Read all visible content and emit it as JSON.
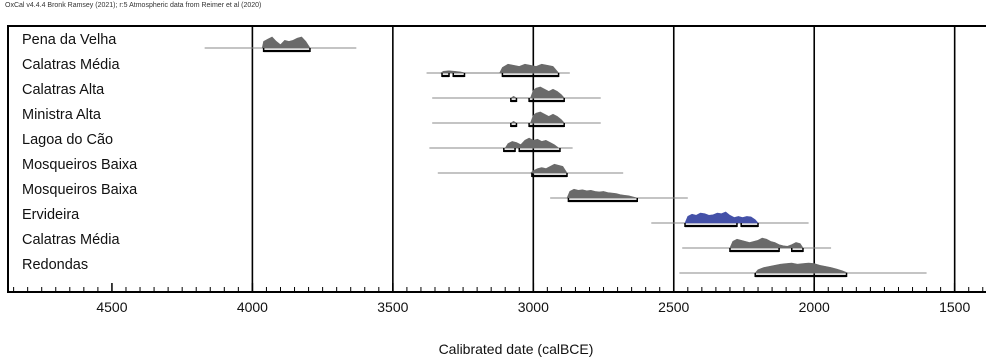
{
  "chart_data": {
    "type": "calibrated-date-distributions",
    "header": "OxCal v4.4.4 Bronk Ramsey (2021); r:5 Atmospheric data from Reimer et al (2020)",
    "xlabel": "Calibrated date (calBCE)",
    "xlim": [
      4870,
      1360
    ],
    "x_ticks": [
      4500,
      4000,
      3500,
      3000,
      2500,
      2000,
      1500
    ],
    "x_gridlines": [
      4000,
      3500,
      3000,
      2500,
      2000,
      1500
    ],
    "grid": true,
    "samples": [
      {
        "name": "Pena da Velha",
        "range": [
          4170,
          3630
        ],
        "color": "#6a6a6a",
        "dist": [
          [
            3965,
            0
          ],
          [
            3960,
            0.6
          ],
          [
            3945,
            0.8
          ],
          [
            3930,
            1.0
          ],
          [
            3915,
            0.6
          ],
          [
            3900,
            0.3
          ],
          [
            3885,
            0.7
          ],
          [
            3870,
            0.6
          ],
          [
            3855,
            0.7
          ],
          [
            3840,
            0.9
          ],
          [
            3825,
            1.0
          ],
          [
            3810,
            0.6
          ],
          [
            3795,
            0
          ]
        ],
        "intervals_95": [
          [
            3960,
            3795
          ]
        ]
      },
      {
        "name": "Calatras Média",
        "range": [
          3380,
          2870
        ],
        "color": "#6a6a6a",
        "dist": [
          [
            3330,
            0
          ],
          [
            3320,
            0.15
          ],
          [
            3300,
            0.2
          ],
          [
            3280,
            0.15
          ],
          [
            3260,
            0.1
          ],
          [
            3240,
            0
          ],
          [
            3120,
            0
          ],
          [
            3110,
            0.5
          ],
          [
            3090,
            0.8
          ],
          [
            3070,
            0.7
          ],
          [
            3050,
            0.6
          ],
          [
            3030,
            0.8
          ],
          [
            3010,
            0.7
          ],
          [
            2990,
            0.6
          ],
          [
            2970,
            0.8
          ],
          [
            2950,
            0.7
          ],
          [
            2930,
            0.6
          ],
          [
            2910,
            0
          ]
        ],
        "intervals_95": [
          [
            3325,
            3300
          ],
          [
            3285,
            3245
          ],
          [
            3110,
            2910
          ]
        ]
      },
      {
        "name": "Calatras Alta",
        "range": [
          3360,
          2760
        ],
        "color": "#6a6a6a",
        "dist": [
          [
            3080,
            0
          ],
          [
            3070,
            0.15
          ],
          [
            3060,
            0
          ],
          [
            3010,
            0
          ],
          [
            3000,
            0.7
          ],
          [
            2990,
            0.9
          ],
          [
            2975,
            1.0
          ],
          [
            2960,
            0.8
          ],
          [
            2945,
            0.6
          ],
          [
            2930,
            0.8
          ],
          [
            2915,
            0.6
          ],
          [
            2900,
            0.3
          ],
          [
            2890,
            0
          ]
        ],
        "intervals_95": [
          [
            3080,
            3060
          ],
          [
            3015,
            2890
          ]
        ]
      },
      {
        "name": "Ministra Alta",
        "range": [
          3360,
          2760
        ],
        "color": "#6a6a6a",
        "dist": [
          [
            3080,
            0
          ],
          [
            3070,
            0.15
          ],
          [
            3060,
            0
          ],
          [
            3010,
            0
          ],
          [
            3000,
            0.7
          ],
          [
            2990,
            0.9
          ],
          [
            2975,
            1.0
          ],
          [
            2960,
            0.8
          ],
          [
            2945,
            0.6
          ],
          [
            2930,
            0.8
          ],
          [
            2915,
            0.6
          ],
          [
            2900,
            0.3
          ],
          [
            2890,
            0
          ]
        ],
        "intervals_95": [
          [
            3080,
            3060
          ],
          [
            3015,
            2890
          ]
        ]
      },
      {
        "name": "Lagoa do Cão",
        "range": [
          3370,
          2860
        ],
        "color": "#6a6a6a",
        "dist": [
          [
            3100,
            0
          ],
          [
            3090,
            0.4
          ],
          [
            3075,
            0.6
          ],
          [
            3060,
            0.5
          ],
          [
            3045,
            0.3
          ],
          [
            3030,
            0.7
          ],
          [
            3015,
            0.9
          ],
          [
            3000,
            0.7
          ],
          [
            2985,
            0.8
          ],
          [
            2970,
            0.6
          ],
          [
            2955,
            0.7
          ],
          [
            2940,
            0.5
          ],
          [
            2925,
            0.3
          ],
          [
            2910,
            0
          ]
        ],
        "intervals_95": [
          [
            3105,
            3065
          ],
          [
            3050,
            2905
          ]
        ]
      },
      {
        "name": "Mosqueiros Baixa",
        "range": [
          3340,
          2680
        ],
        "color": "#6a6a6a",
        "dist": [
          [
            3010,
            0
          ],
          [
            3000,
            0.2
          ],
          [
            2985,
            0.4
          ],
          [
            2970,
            0.5
          ],
          [
            2955,
            0.4
          ],
          [
            2940,
            0.6
          ],
          [
            2925,
            0.8
          ],
          [
            2910,
            0.7
          ],
          [
            2895,
            0.6
          ],
          [
            2880,
            0
          ]
        ],
        "intervals_95": [
          [
            3005,
            2880
          ]
        ]
      },
      {
        "name": "Mosqueiros Baixa",
        "range": [
          2940,
          2450
        ],
        "color": "#6a6a6a",
        "dist": [
          [
            2880,
            0
          ],
          [
            2870,
            0.6
          ],
          [
            2855,
            0.8
          ],
          [
            2840,
            0.7
          ],
          [
            2825,
            0.75
          ],
          [
            2810,
            0.65
          ],
          [
            2795,
            0.7
          ],
          [
            2780,
            0.6
          ],
          [
            2765,
            0.55
          ],
          [
            2750,
            0.6
          ],
          [
            2735,
            0.5
          ],
          [
            2720,
            0.45
          ],
          [
            2705,
            0.4
          ],
          [
            2690,
            0.3
          ],
          [
            2675,
            0.25
          ],
          [
            2660,
            0.2
          ],
          [
            2645,
            0.1
          ],
          [
            2630,
            0
          ]
        ],
        "intervals_95": [
          [
            2875,
            2630
          ]
        ]
      },
      {
        "name": "Ervideira",
        "range": [
          2580,
          2020
        ],
        "color": "#4451a8",
        "dist": [
          [
            2460,
            0
          ],
          [
            2450,
            0.6
          ],
          [
            2435,
            0.8
          ],
          [
            2420,
            0.7
          ],
          [
            2405,
            0.9
          ],
          [
            2390,
            0.85
          ],
          [
            2375,
            0.7
          ],
          [
            2360,
            0.75
          ],
          [
            2345,
            0.9
          ],
          [
            2330,
            0.85
          ],
          [
            2315,
            1.0
          ],
          [
            2300,
            0.7
          ],
          [
            2285,
            0.5
          ],
          [
            2270,
            0.6
          ],
          [
            2255,
            0.5
          ],
          [
            2240,
            0.6
          ],
          [
            2225,
            0.55
          ],
          [
            2210,
            0.3
          ],
          [
            2200,
            0
          ]
        ],
        "intervals_95": [
          [
            2460,
            2275
          ],
          [
            2260,
            2200
          ]
        ]
      },
      {
        "name": "Calatras Média",
        "range": [
          2470,
          1940
        ],
        "color": "#6a6a6a",
        "dist": [
          [
            2300,
            0
          ],
          [
            2290,
            0.6
          ],
          [
            2275,
            0.8
          ],
          [
            2260,
            0.7
          ],
          [
            2245,
            0.6
          ],
          [
            2230,
            0.5
          ],
          [
            2215,
            0.6
          ],
          [
            2200,
            0.7
          ],
          [
            2185,
            0.9
          ],
          [
            2170,
            0.8
          ],
          [
            2155,
            0.6
          ],
          [
            2140,
            0.5
          ],
          [
            2125,
            0.3
          ],
          [
            2110,
            0.2
          ],
          [
            2095,
            0.15
          ],
          [
            2080,
            0.3
          ],
          [
            2065,
            0.5
          ],
          [
            2050,
            0.4
          ],
          [
            2040,
            0
          ]
        ],
        "intervals_95": [
          [
            2300,
            2125
          ],
          [
            2080,
            2040
          ]
        ]
      },
      {
        "name": "Redondas",
        "range": [
          2480,
          1600
        ],
        "color": "#6a6a6a",
        "dist": [
          [
            2210,
            0
          ],
          [
            2200,
            0.3
          ],
          [
            2180,
            0.5
          ],
          [
            2160,
            0.6
          ],
          [
            2140,
            0.7
          ],
          [
            2120,
            0.8
          ],
          [
            2100,
            0.85
          ],
          [
            2080,
            0.9
          ],
          [
            2060,
            0.8
          ],
          [
            2040,
            0.85
          ],
          [
            2020,
            0.9
          ],
          [
            2000,
            0.85
          ],
          [
            1980,
            0.7
          ],
          [
            1960,
            0.6
          ],
          [
            1940,
            0.5
          ],
          [
            1920,
            0.35
          ],
          [
            1900,
            0.2
          ],
          [
            1880,
            0
          ]
        ],
        "intervals_95": [
          [
            2210,
            1885
          ]
        ]
      }
    ]
  }
}
